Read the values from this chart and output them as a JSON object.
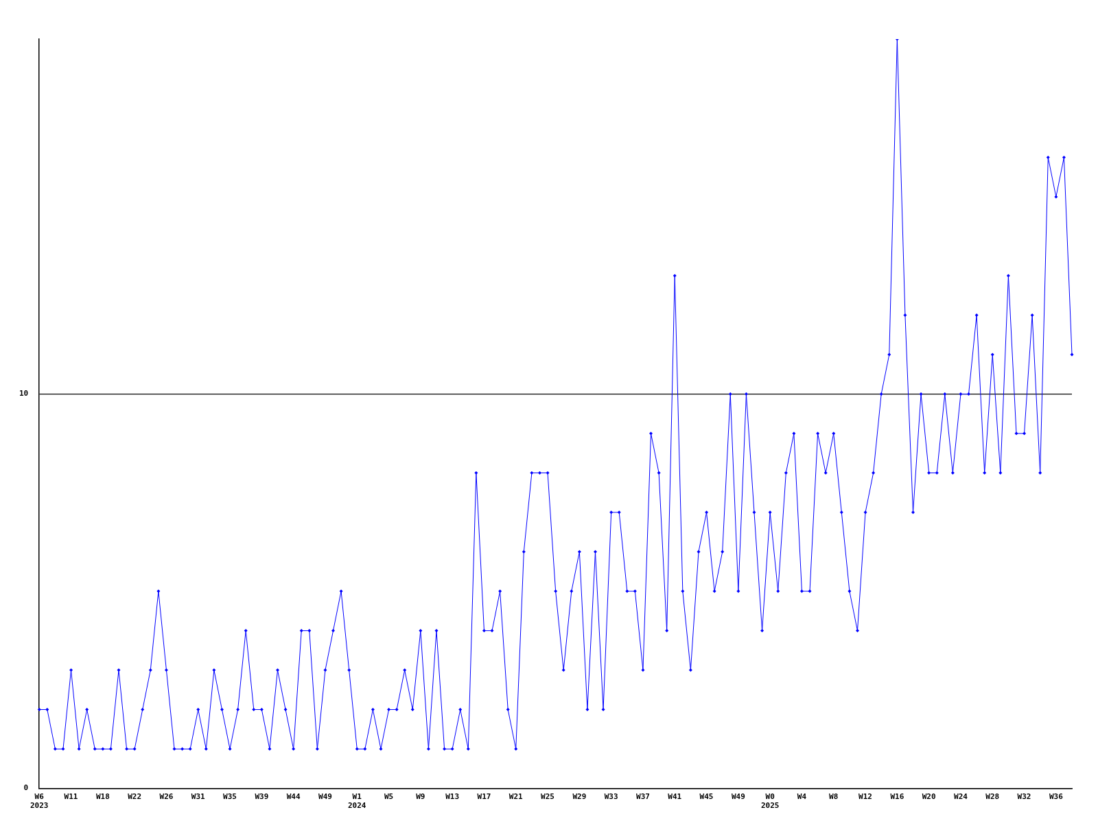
{
  "chart_data": {
    "type": "line",
    "categories": [
      "W6\n2023",
      null,
      null,
      null,
      "W11",
      null,
      null,
      null,
      "W18",
      null,
      null,
      null,
      "W22",
      null,
      null,
      null,
      "W26",
      null,
      null,
      null,
      "W31",
      null,
      null,
      null,
      "W35",
      null,
      null,
      null,
      "W39",
      null,
      null,
      null,
      "W44",
      null,
      null,
      null,
      "W49",
      null,
      null,
      null,
      "W1\n2024",
      null,
      null,
      null,
      "W5",
      null,
      null,
      null,
      "W9",
      null,
      null,
      null,
      "W13",
      null,
      null,
      null,
      "W17",
      null,
      null,
      null,
      "W21",
      null,
      null,
      null,
      "W25",
      null,
      null,
      null,
      "W29",
      null,
      null,
      null,
      "W33",
      null,
      null,
      null,
      "W37",
      null,
      null,
      null,
      "W41",
      null,
      null,
      null,
      "W45",
      null,
      null,
      null,
      "W49",
      null,
      null,
      null,
      "W0\n2025",
      null,
      null,
      null,
      "W4",
      null,
      null,
      null,
      "W8",
      null,
      null,
      null,
      "W12",
      null,
      null,
      null,
      "W16",
      null,
      null,
      null,
      "W20",
      null,
      null,
      null,
      "W24",
      null,
      null,
      null,
      "W28",
      null,
      null,
      null,
      "W32",
      null,
      null,
      null,
      "W36",
      null,
      null
    ],
    "series": [
      {
        "color": "#0000ff",
        "values": [
          2,
          2,
          1,
          1,
          3,
          1,
          2,
          1,
          1,
          1,
          3,
          1,
          1,
          2,
          3,
          5,
          3,
          1,
          1,
          1,
          2,
          1,
          3,
          2,
          1,
          2,
          4,
          2,
          2,
          1,
          3,
          2,
          1,
          4,
          4,
          1,
          3,
          4,
          5,
          3,
          1,
          1,
          2,
          1,
          2,
          2,
          3,
          2,
          4,
          1,
          4,
          1,
          1,
          2,
          1,
          8,
          4,
          4,
          5,
          2,
          1,
          6,
          8,
          8,
          8,
          5,
          3,
          5,
          6,
          2,
          6,
          2,
          7,
          7,
          5,
          5,
          3,
          9,
          8,
          4,
          13,
          5,
          3,
          6,
          7,
          5,
          6,
          10,
          5,
          10,
          7,
          4,
          7,
          5,
          8,
          9,
          5,
          5,
          9,
          8,
          9,
          7,
          5,
          4,
          7,
          8,
          10,
          11,
          19,
          12,
          7,
          10,
          8,
          8,
          10,
          8,
          10,
          10,
          12,
          8,
          11,
          8,
          13,
          9,
          9,
          12,
          8,
          16,
          15,
          16,
          11
        ]
      }
    ],
    "ylim": [
      0,
      19
    ],
    "yticks": [
      0,
      10
    ],
    "grid": "y",
    "marker": "diamond",
    "line_style": "solid",
    "legend": false
  }
}
